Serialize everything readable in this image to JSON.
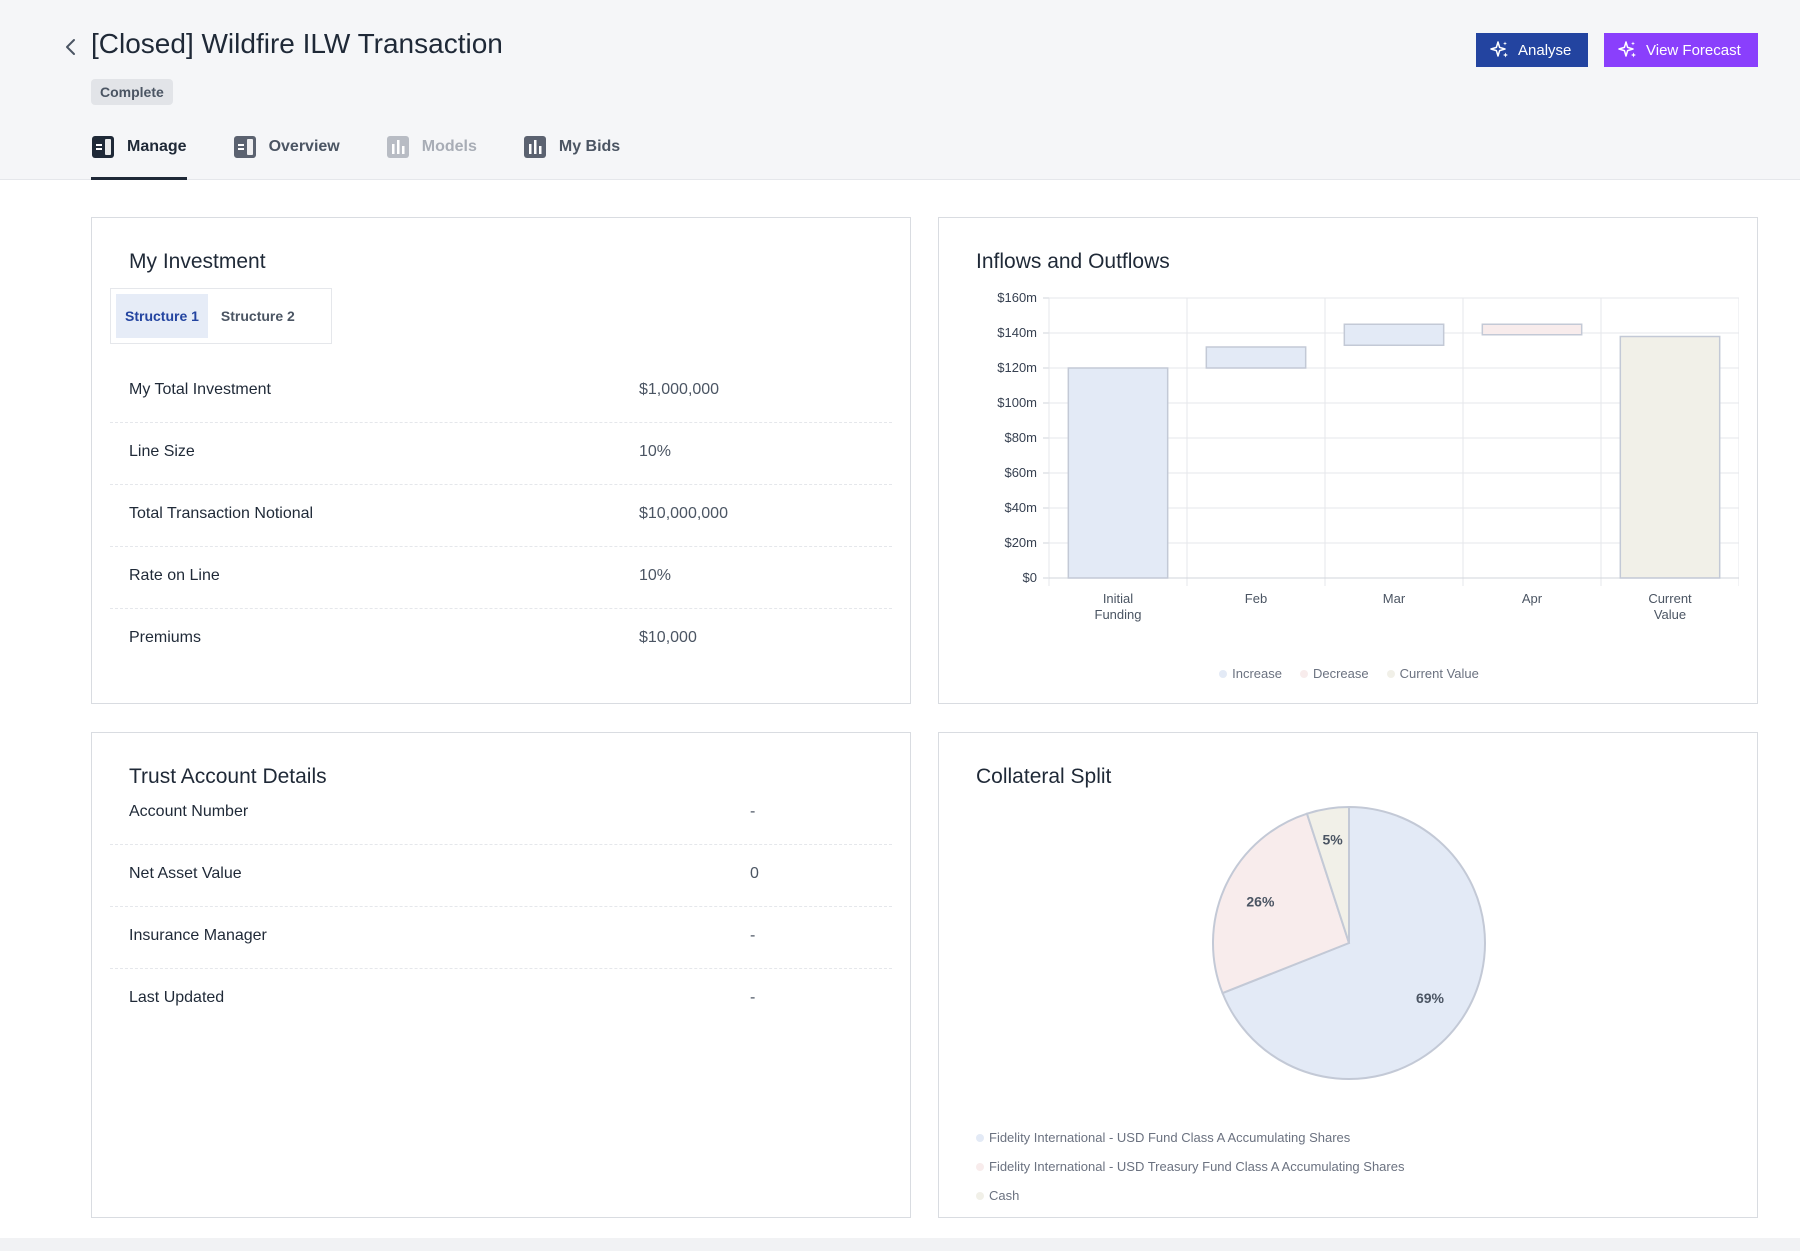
{
  "header": {
    "title": "[Closed] Wildfire ILW Transaction",
    "status": "Complete",
    "back_icon": "chevron-left-icon",
    "actions": {
      "analyse_label": "Analyse",
      "forecast_label": "View Forecast",
      "analyse_color": "#2344a0",
      "forecast_color": "#8a3ffc"
    }
  },
  "tabs": [
    {
      "label": "Manage",
      "icon": "panel-icon",
      "state": "active"
    },
    {
      "label": "Overview",
      "icon": "panel-icon",
      "state": "normal"
    },
    {
      "label": "Models",
      "icon": "bar-chart-icon",
      "state": "disabled"
    },
    {
      "label": "My Bids",
      "icon": "bar-chart-icon",
      "state": "normal"
    }
  ],
  "investment": {
    "title": "My Investment",
    "structures": [
      "Structure 1",
      "Structure 2"
    ],
    "active_structure": "Structure 1",
    "rows": [
      {
        "label": "My Total Investment",
        "value": "$1,000,000"
      },
      {
        "label": "Line Size",
        "value": "10%"
      },
      {
        "label": "Total Transaction Notional",
        "value": "$10,000,000"
      },
      {
        "label": "Rate on Line",
        "value": "10%"
      },
      {
        "label": "Premiums",
        "value": "$10,000"
      }
    ]
  },
  "trust": {
    "title": "Trust Account Details",
    "rows": [
      {
        "label": "Account Number",
        "value": "-"
      },
      {
        "label": "Net Asset Value",
        "value": "0"
      },
      {
        "label": "Insurance Manager",
        "value": "-"
      },
      {
        "label": "Last Updated",
        "value": "-"
      }
    ]
  },
  "flows": {
    "title": "Inflows and Outflows",
    "legend": [
      {
        "label": "Increase",
        "color": "#e3eaf6"
      },
      {
        "label": "Decrease",
        "color": "#f8ecec"
      },
      {
        "label": "Current Value",
        "color": "#f1f0e8"
      }
    ]
  },
  "collateral": {
    "title": "Collateral Split",
    "legend": [
      {
        "label": "Fidelity International - USD Fund Class A Accumulating Shares",
        "color": "#e3eaf6"
      },
      {
        "label": "Fidelity International - USD Treasury Fund Class A Accumulating Shares",
        "color": "#f8ecec"
      },
      {
        "label": "Cash",
        "color": "#f1f0e8"
      }
    ]
  },
  "chart_data": [
    {
      "type": "bar",
      "subtype": "waterfall",
      "title": "Inflows and Outflows",
      "categories": [
        [
          "Initial",
          "Funding"
        ],
        [
          "Feb"
        ],
        [
          "Mar"
        ],
        [
          "Apr"
        ],
        [
          "Current",
          "Value"
        ]
      ],
      "bars": [
        {
          "start": 0,
          "end": 120,
          "kind": "Increase"
        },
        {
          "start": 120,
          "end": 132,
          "kind": "Increase"
        },
        {
          "start": 133,
          "end": 145,
          "kind": "Increase"
        },
        {
          "start": 139,
          "end": 145,
          "kind": "Decrease"
        },
        {
          "start": 0,
          "end": 138,
          "kind": "Current Value"
        }
      ],
      "y_ticks": [
        "$0",
        "$20m",
        "$40m",
        "$60m",
        "$80m",
        "$100m",
        "$120m",
        "$140m",
        "$160m"
      ],
      "ylim": [
        0,
        160
      ],
      "legend": [
        "Increase",
        "Decrease",
        "Current Value"
      ],
      "legend_position": "bottom",
      "grid": true,
      "colors": {
        "Increase": "#e3eaf6",
        "Decrease": "#f8ecec",
        "Current Value": "#f1f0e8"
      }
    },
    {
      "type": "pie",
      "title": "Collateral Split",
      "labels": [
        "Fidelity International - USD Fund Class A Accumulating Shares",
        "Fidelity International - USD Treasury Fund Class A Accumulating Shares",
        "Cash"
      ],
      "values": [
        69,
        26,
        5
      ],
      "value_labels": [
        "69%",
        "26%",
        "5%"
      ],
      "colors": [
        "#e3eaf6",
        "#f8ecec",
        "#f1f0e8"
      ],
      "legend_position": "bottom-left"
    }
  ]
}
